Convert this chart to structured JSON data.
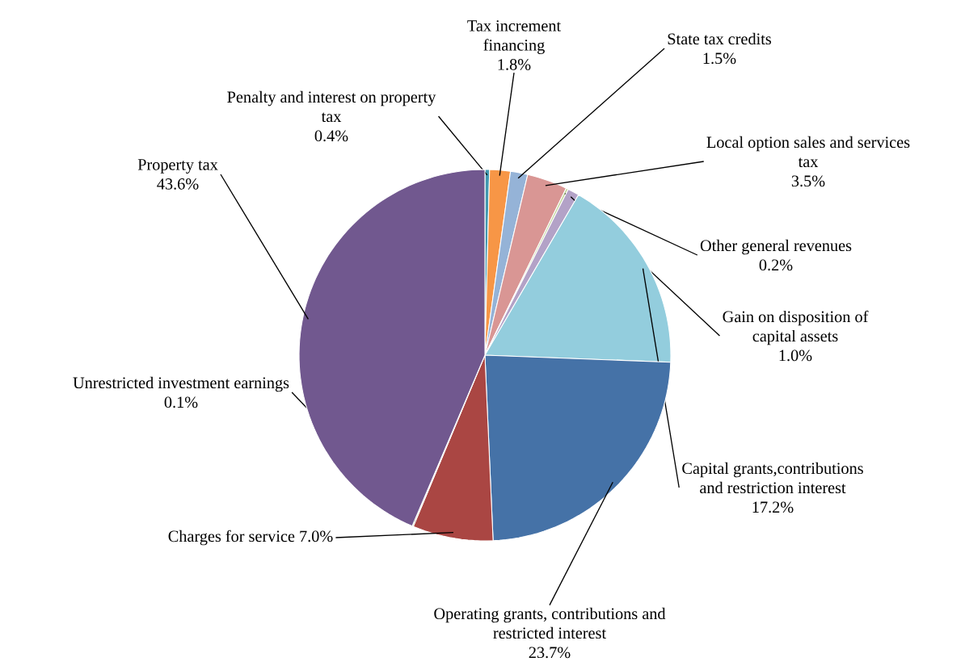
{
  "chart_data": {
    "type": "pie",
    "categories": [
      "Penalty and interest on property tax",
      "Tax increment financing",
      "State tax credits",
      "Local option sales and services tax",
      "Other general revenues",
      "Gain on disposition of capital assets",
      "Capital grants,contributions and restriction interest",
      "Operating grants, contributions and restricted interest",
      "Charges for service",
      "Unrestricted investment earnings",
      "Property tax"
    ],
    "values": [
      0.4,
      1.8,
      1.5,
      3.5,
      0.2,
      1.0,
      17.2,
      23.7,
      7.0,
      0.1,
      43.6
    ],
    "value_labels": [
      "0.4%",
      "1.8%",
      "1.5%",
      "3.5%",
      "0.2%",
      "1.0%",
      "17.2%",
      "23.7%",
      "7.0%",
      "0.1%",
      "43.6%"
    ],
    "colors": [
      "#4198af",
      "#f79646",
      "#95b3d7",
      "#d99694",
      "#c3d69b",
      "#b3a2c7",
      "#93cddd",
      "#4572a7",
      "#aa4643",
      "#89a54e",
      "#71588f"
    ]
  }
}
